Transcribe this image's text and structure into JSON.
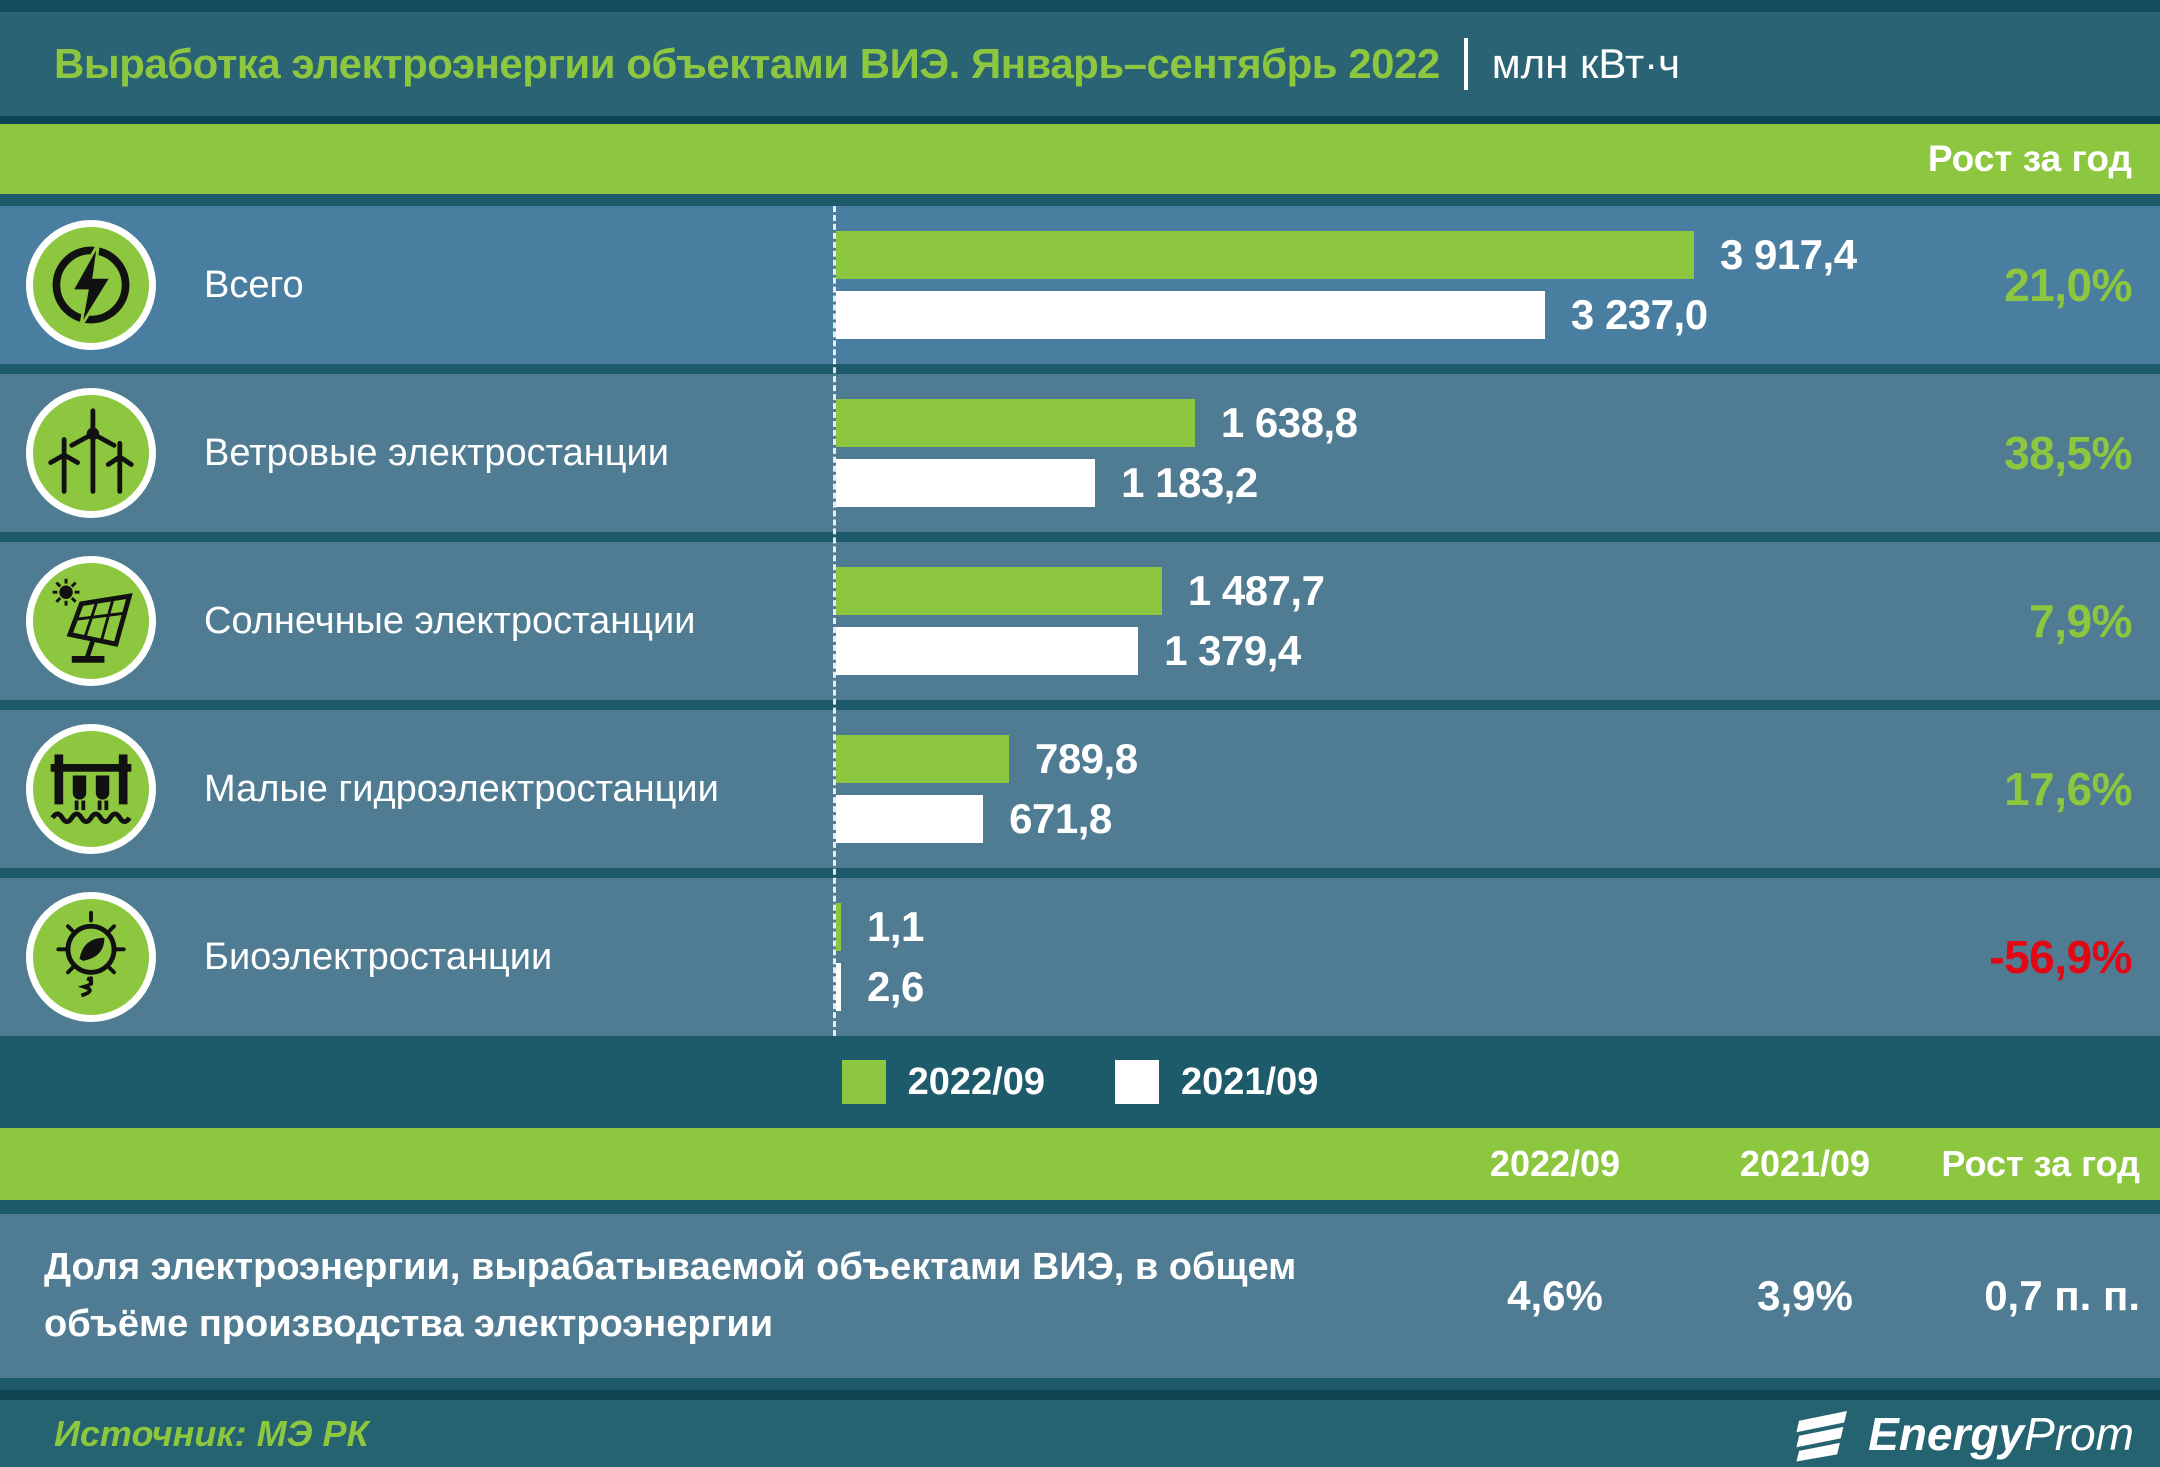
{
  "title": {
    "text": "Выработка электроэнергии объектами ВИЭ. Январь–сентябрь 2022",
    "unit": "млн кВт·ч"
  },
  "growth_header": "Рост за год",
  "chart_data": {
    "type": "bar",
    "orientation": "horizontal",
    "unit": "млн кВт·ч",
    "grid": false,
    "legend_position": "bottom",
    "categories": [
      "Всего",
      "Ветровые электростанции",
      "Солнечные электростанции",
      "Малые гидроэлектростанции",
      "Биоэлектростанции"
    ],
    "series": [
      {
        "name": "2022/09",
        "color": "#8DC63F",
        "values": [
          3917.4,
          1638.8,
          1487.7,
          789.8,
          1.1
        ]
      },
      {
        "name": "2021/09",
        "color": "#FFFFFF",
        "values": [
          3237.0,
          1183.2,
          1379.4,
          671.8,
          2.6
        ]
      }
    ],
    "rows": [
      {
        "label": "Всего",
        "icon": "lightning-icon",
        "values": [
          3917.4,
          3237.0
        ],
        "value_2022": "3 917,4",
        "value_2021": "3 237,0",
        "growth": "21,0%",
        "growth_color": "#8DC63F"
      },
      {
        "label": "Ветровые электростанции",
        "icon": "wind-turbine-icon",
        "values": [
          1638.8,
          1183.2
        ],
        "value_2022": "1 638,8",
        "value_2021": "1 183,2",
        "growth": "38,5%",
        "growth_color": "#8DC63F"
      },
      {
        "label": "Солнечные электростанции",
        "icon": "solar-panel-icon",
        "values": [
          1487.7,
          1379.4
        ],
        "value_2022": "1 487,7",
        "value_2021": "1 379,4",
        "growth": "7,9%",
        "growth_color": "#8DC63F"
      },
      {
        "label": "Малые гидроэлектростанции",
        "icon": "hydro-dam-icon",
        "values": [
          789.8,
          671.8
        ],
        "value_2022": "789,8",
        "value_2021": "671,8",
        "growth": "17,6%",
        "growth_color": "#8DC63F"
      },
      {
        "label": "Биоэлектростанции",
        "icon": "bio-bulb-icon",
        "values": [
          1.1,
          2.6
        ],
        "value_2022": "1,1",
        "value_2021": "2,6",
        "growth": "-56,9%",
        "growth_color": "#E30613"
      }
    ]
  },
  "legend": [
    {
      "label": "2022/09",
      "color": "#8DC63F"
    },
    {
      "label": "2021/09",
      "color": "#FFFFFF"
    }
  ],
  "summary_table": {
    "headers": [
      "2022/09",
      "2021/09",
      "Рост за год"
    ],
    "row": {
      "label": "Доля электроэнергии, вырабатываемой объектами ВИЭ, в общем объёме производства электроэнергии",
      "v1": "4,6%",
      "v2": "3,9%",
      "v3": "0,7 п. п."
    }
  },
  "footer": {
    "source": "Источник: МЭ РК",
    "brand_bold": "Energy",
    "brand_light": "Prom"
  },
  "colors": {
    "green": "#8DC63F",
    "red": "#E30613",
    "row_bg": "#4F7C93",
    "base_bg": "#1D5A6A"
  }
}
